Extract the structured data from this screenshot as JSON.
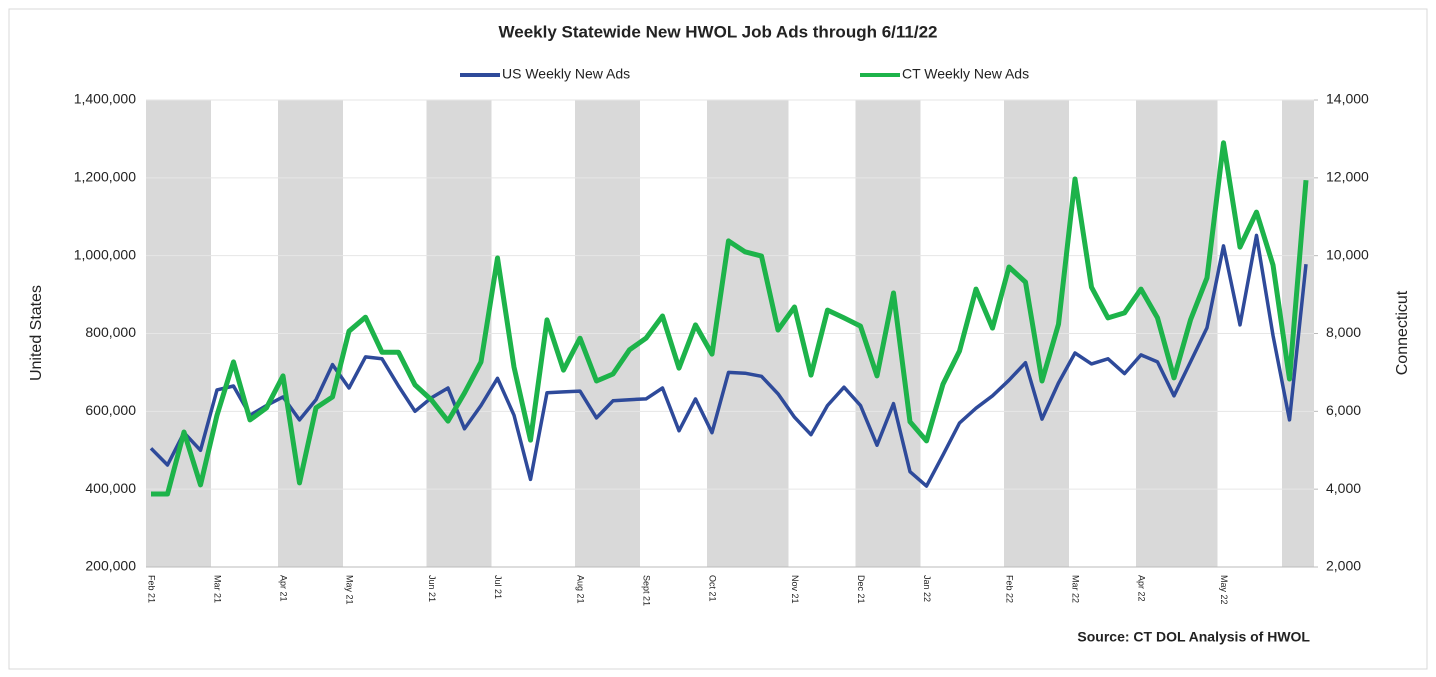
{
  "chart_data": {
    "type": "line",
    "title": "Weekly Statewide New HWOL Job Ads through 6/11/22",
    "y_label": "United States",
    "y2_label": "Connecticut",
    "source": "Source: CT DOL Analysis of HWOL",
    "categories": [
      "Feb 21",
      null,
      null,
      null,
      "Mar 21",
      null,
      null,
      null,
      "Apr 21",
      null,
      null,
      null,
      "May 21",
      null,
      null,
      null,
      null,
      "Jun 21",
      null,
      null,
      null,
      "Jul 21",
      null,
      null,
      null,
      null,
      "Aug 21",
      null,
      null,
      null,
      "Sept 21",
      null,
      null,
      null,
      "Oct 21",
      null,
      null,
      null,
      null,
      "Nov 21",
      null,
      null,
      null,
      "Dec 21",
      null,
      null,
      null,
      "Jan 22",
      null,
      null,
      null,
      null,
      "Feb 22",
      null,
      null,
      null,
      "Mar 22",
      null,
      null,
      null,
      "Apr 22",
      null,
      null,
      null,
      null,
      "May 22",
      null,
      null,
      null,
      null,
      null
    ],
    "series": [
      {
        "name": "US Weekly New Ads",
        "color": "#2e4a9a",
        "axis": "y",
        "values": [
          505000,
          462000,
          545000,
          500000,
          655000,
          665000,
          590000,
          615000,
          637000,
          578000,
          630000,
          720000,
          660000,
          740000,
          735000,
          665000,
          600000,
          635000,
          660000,
          555000,
          615000,
          685000,
          590000,
          425000,
          648000,
          650000,
          652000,
          583000,
          627000,
          630000,
          632000,
          660000,
          550000,
          632000,
          545000,
          700000,
          698000,
          690000,
          645000,
          585000,
          540000,
          615000,
          662000,
          615000,
          513000,
          620000,
          445000,
          408000,
          488000,
          570000,
          608000,
          640000,
          680000,
          725000,
          580000,
          673000,
          750000,
          722000,
          735000,
          697000,
          745000,
          727000,
          640000,
          727000,
          815000,
          1025000,
          822000,
          1052000,
          795000,
          578000,
          978000
        ]
      },
      {
        "name": "CT Weekly New Ads",
        "color": "#1db34a",
        "axis": "y2",
        "values": [
          3875,
          3875,
          5470,
          4110,
          5900,
          7270,
          5780,
          6090,
          6910,
          4160,
          6090,
          6370,
          8060,
          8420,
          7520,
          7520,
          6680,
          6290,
          5750,
          6470,
          7270,
          9940,
          7140,
          5260,
          8350,
          7060,
          7880,
          6780,
          6960,
          7580,
          7880,
          8450,
          7110,
          8220,
          7470,
          10380,
          10100,
          9990,
          8090,
          8680,
          6930,
          8600,
          8400,
          8190,
          6910,
          9040,
          5730,
          5240,
          6700,
          7550,
          9140,
          8140,
          9710,
          9320,
          6780,
          8240,
          11970,
          9190,
          8400,
          8530,
          9140,
          8400,
          6860,
          8350,
          9430,
          12900,
          10220,
          11120,
          9760,
          6830,
          11940
        ]
      }
    ],
    "ylim": [
      200000,
      1400000
    ],
    "yticks": [
      {
        "value": 200000,
        "label": "200,000"
      },
      {
        "value": 400000,
        "label": "400,000"
      },
      {
        "value": 600000,
        "label": "600,000"
      },
      {
        "value": 800000,
        "label": "800,000"
      },
      {
        "value": 1000000,
        "label": "1,000,000"
      },
      {
        "value": 1200000,
        "label": "1,200,000"
      },
      {
        "value": 1400000,
        "label": "1,400,000"
      }
    ],
    "y2lim": [
      2000,
      14000
    ],
    "y2ticks": [
      {
        "value": 2000,
        "label": "2,000"
      },
      {
        "value": 4000,
        "label": "4,000"
      },
      {
        "value": 6000,
        "label": "6,000"
      },
      {
        "value": 8000,
        "label": "8,000"
      },
      {
        "value": 10000,
        "label": "10,000"
      },
      {
        "value": 12000,
        "label": "12,000"
      },
      {
        "value": 14000,
        "label": "14,000"
      }
    ],
    "grid": true,
    "legend": "top"
  }
}
